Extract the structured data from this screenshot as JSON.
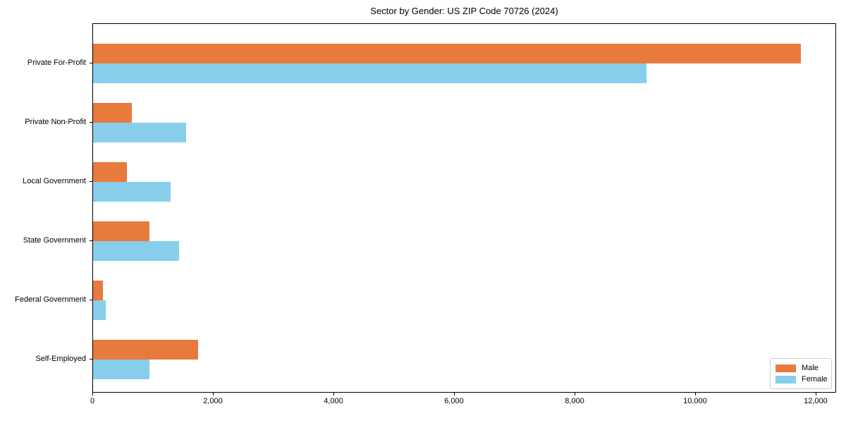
{
  "chart_data": {
    "type": "bar",
    "orientation": "horizontal",
    "title": "Sector by Gender: US ZIP Code 70726 (2024)",
    "categories": [
      "Private For-Profit",
      "Private Non-Profit",
      "Local Government",
      "State Government",
      "Federal Government",
      "Self-Employed"
    ],
    "series": [
      {
        "name": "Male",
        "color": "#e87a3e",
        "values": [
          11760,
          645,
          560,
          935,
          165,
          1745
        ]
      },
      {
        "name": "Female",
        "color": "#87ceeb",
        "values": [
          9200,
          1545,
          1285,
          1425,
          210,
          935
        ]
      }
    ],
    "xlim": [
      0,
      12340
    ],
    "x_ticks": [
      "0",
      "2,000",
      "4,000",
      "6,000",
      "8,000",
      "10,000",
      "12,000"
    ],
    "x_tick_values": [
      0,
      2000,
      4000,
      6000,
      8000,
      10000,
      12000
    ],
    "xlabel": "",
    "ylabel": "",
    "grid": false,
    "legend_position": "lower right"
  }
}
